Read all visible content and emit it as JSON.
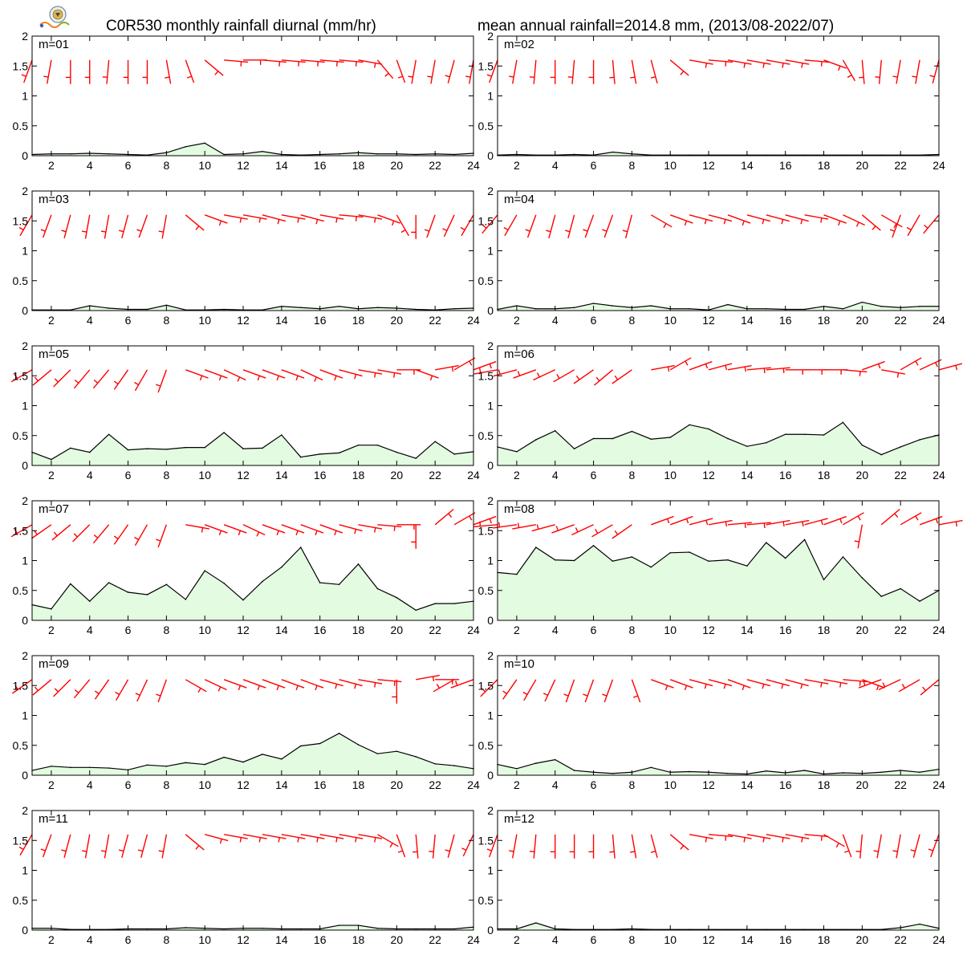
{
  "title_left": "C0R530 monthly rainfall diurnal (mm/hr)",
  "title_right": "mean annual rainfall=2014.8 mm, (2013/08-2022/07)",
  "logo_icon": "lab-logo-icon",
  "colors": {
    "area": "#e3fbe0",
    "line": "#000000",
    "barb": "#ff0000"
  },
  "chart_data": {
    "type": "area",
    "x": [
      1,
      2,
      3,
      4,
      5,
      6,
      7,
      8,
      9,
      10,
      11,
      12,
      13,
      14,
      15,
      16,
      17,
      18,
      19,
      20,
      21,
      22,
      23,
      24
    ],
    "x_ticks": [
      "2",
      "4",
      "6",
      "8",
      "10",
      "12",
      "14",
      "16",
      "18",
      "20",
      "22",
      "24"
    ],
    "y_ticks": [
      "0",
      "0.5",
      "1",
      "1.5",
      "2"
    ],
    "xlim": [
      1,
      24
    ],
    "ylim": [
      0,
      2
    ],
    "barb_overlay": true,
    "panels": [
      {
        "label": "m=01",
        "values": [
          0.02,
          0.03,
          0.03,
          0.04,
          0.03,
          0.02,
          0.01,
          0.05,
          0.15,
          0.21,
          0.02,
          0.03,
          0.07,
          0.02,
          0.01,
          0.02,
          0.03,
          0.05,
          0.03,
          0.03,
          0.02,
          0.03,
          0.02,
          0.04
        ],
        "barb_dir": [
          200,
          190,
          180,
          180,
          185,
          180,
          180,
          170,
          160,
          130,
          95,
          90,
          95,
          95,
          95,
          95,
          95,
          100,
          140,
          160,
          190,
          190,
          195,
          190
        ]
      },
      {
        "label": "m=02",
        "values": [
          0.01,
          0.02,
          0.01,
          0.01,
          0.02,
          0.01,
          0.06,
          0.03,
          0.01,
          0.01,
          0.01,
          0.01,
          0.01,
          0.01,
          0.01,
          0.01,
          0.01,
          0.01,
          0.01,
          0.01,
          0.01,
          0.01,
          0.01,
          0.02
        ],
        "barb_dir": [
          200,
          190,
          185,
          180,
          185,
          180,
          175,
          170,
          165,
          130,
          100,
          95,
          100,
          100,
          100,
          100,
          95,
          110,
          150,
          175,
          185,
          190,
          190,
          195
        ]
      },
      {
        "label": "m=03",
        "values": [
          0.01,
          0.01,
          0.01,
          0.08,
          0.04,
          0.02,
          0.02,
          0.09,
          0.01,
          0.01,
          0.02,
          0.01,
          0.01,
          0.07,
          0.05,
          0.03,
          0.07,
          0.03,
          0.05,
          0.04,
          0.02,
          0.01,
          0.03,
          0.04
        ],
        "barb_dir": [
          210,
          200,
          195,
          190,
          190,
          195,
          200,
          190,
          130,
          110,
          100,
          100,
          105,
          100,
          105,
          100,
          95,
          100,
          110,
          150,
          180,
          200,
          205,
          210
        ]
      },
      {
        "label": "m=04",
        "values": [
          0.02,
          0.08,
          0.03,
          0.03,
          0.05,
          0.12,
          0.08,
          0.05,
          0.08,
          0.03,
          0.03,
          0.01,
          0.1,
          0.03,
          0.03,
          0.02,
          0.02,
          0.07,
          0.03,
          0.14,
          0.07,
          0.05,
          0.07,
          0.07
        ],
        "barb_dir": [
          220,
          210,
          200,
          195,
          195,
          200,
          200,
          195,
          120,
          110,
          105,
          105,
          110,
          105,
          105,
          105,
          100,
          110,
          115,
          130,
          120,
          200,
          210,
          220
        ]
      },
      {
        "label": "m=05",
        "values": [
          0.22,
          0.1,
          0.29,
          0.22,
          0.52,
          0.26,
          0.28,
          0.27,
          0.3,
          0.3,
          0.55,
          0.28,
          0.29,
          0.51,
          0.14,
          0.19,
          0.21,
          0.34,
          0.34,
          0.22,
          0.12,
          0.4,
          0.19,
          0.23
        ],
        "barb_dir": [
          240,
          230,
          225,
          220,
          220,
          215,
          210,
          200,
          110,
          110,
          115,
          110,
          110,
          110,
          115,
          110,
          105,
          100,
          100,
          90,
          110,
          80,
          60,
          70
        ]
      },
      {
        "label": "m=06",
        "values": [
          0.31,
          0.23,
          0.43,
          0.58,
          0.28,
          0.45,
          0.45,
          0.57,
          0.44,
          0.47,
          0.68,
          0.61,
          0.45,
          0.32,
          0.38,
          0.52,
          0.52,
          0.51,
          0.72,
          0.34,
          0.18,
          0.31,
          0.43,
          0.51
        ],
        "barb_dir": [
          260,
          255,
          250,
          245,
          240,
          235,
          230,
          235,
          80,
          60,
          70,
          75,
          80,
          85,
          85,
          90,
          90,
          90,
          95,
          70,
          100,
          60,
          65,
          75
        ]
      },
      {
        "label": "m=07",
        "values": [
          0.26,
          0.19,
          0.61,
          0.32,
          0.63,
          0.47,
          0.43,
          0.6,
          0.35,
          0.83,
          0.62,
          0.34,
          0.65,
          0.89,
          1.22,
          0.63,
          0.6,
          0.94,
          0.53,
          0.38,
          0.17,
          0.28,
          0.28,
          0.32
        ],
        "barb_dir": [
          240,
          235,
          230,
          225,
          220,
          215,
          210,
          200,
          100,
          110,
          110,
          115,
          110,
          110,
          110,
          110,
          105,
          100,
          95,
          90,
          180,
          50,
          60,
          70
        ]
      },
      {
        "label": "m=08",
        "values": [
          0.8,
          0.77,
          1.22,
          1.01,
          1.0,
          1.25,
          0.99,
          1.06,
          0.89,
          1.13,
          1.14,
          0.99,
          1.01,
          0.91,
          1.3,
          1.04,
          1.35,
          0.68,
          1.06,
          0.71,
          0.4,
          0.53,
          0.32,
          0.5
        ],
        "barb_dir": [
          265,
          262,
          260,
          255,
          250,
          245,
          240,
          235,
          70,
          70,
          75,
          80,
          85,
          85,
          80,
          80,
          75,
          70,
          60,
          190,
          50,
          60,
          70,
          80
        ]
      },
      {
        "label": "m=09",
        "values": [
          0.08,
          0.15,
          0.13,
          0.13,
          0.12,
          0.09,
          0.17,
          0.15,
          0.21,
          0.18,
          0.3,
          0.22,
          0.35,
          0.27,
          0.49,
          0.53,
          0.7,
          0.51,
          0.36,
          0.4,
          0.31,
          0.19,
          0.16,
          0.11
        ],
        "barb_dir": [
          235,
          230,
          225,
          220,
          215,
          210,
          205,
          200,
          120,
          115,
          110,
          110,
          110,
          110,
          110,
          105,
          105,
          100,
          95,
          180,
          80,
          90,
          240,
          250
        ]
      },
      {
        "label": "m=10",
        "values": [
          0.18,
          0.11,
          0.2,
          0.26,
          0.08,
          0.05,
          0.03,
          0.05,
          0.13,
          0.05,
          0.06,
          0.05,
          0.03,
          0.02,
          0.07,
          0.04,
          0.08,
          0.02,
          0.04,
          0.03,
          0.05,
          0.08,
          0.05,
          0.1
        ],
        "barb_dir": [
          225,
          215,
          210,
          205,
          200,
          200,
          200,
          160,
          110,
          110,
          105,
          105,
          110,
          105,
          105,
          105,
          100,
          100,
          95,
          110,
          250,
          245,
          240,
          230
        ]
      },
      {
        "label": "m=11",
        "values": [
          0.03,
          0.03,
          0.01,
          0.01,
          0.01,
          0.02,
          0.02,
          0.02,
          0.04,
          0.03,
          0.02,
          0.03,
          0.03,
          0.02,
          0.02,
          0.02,
          0.08,
          0.08,
          0.03,
          0.02,
          0.02,
          0.02,
          0.02,
          0.05
        ],
        "barb_dir": [
          210,
          200,
          195,
          190,
          190,
          195,
          195,
          190,
          130,
          105,
          100,
          100,
          100,
          100,
          100,
          100,
          100,
          100,
          120,
          160,
          175,
          185,
          195,
          205
        ]
      },
      {
        "label": "m=12",
        "values": [
          0.02,
          0.02,
          0.12,
          0.02,
          0.01,
          0.01,
          0.01,
          0.02,
          0.01,
          0.01,
          0.01,
          0.01,
          0.01,
          0.01,
          0.01,
          0.01,
          0.01,
          0.01,
          0.01,
          0.01,
          0.01,
          0.04,
          0.1,
          0.03
        ],
        "barb_dir": [
          200,
          190,
          185,
          180,
          180,
          180,
          175,
          170,
          165,
          130,
          100,
          95,
          100,
          100,
          100,
          100,
          95,
          120,
          160,
          185,
          190,
          190,
          195,
          200
        ]
      }
    ]
  }
}
